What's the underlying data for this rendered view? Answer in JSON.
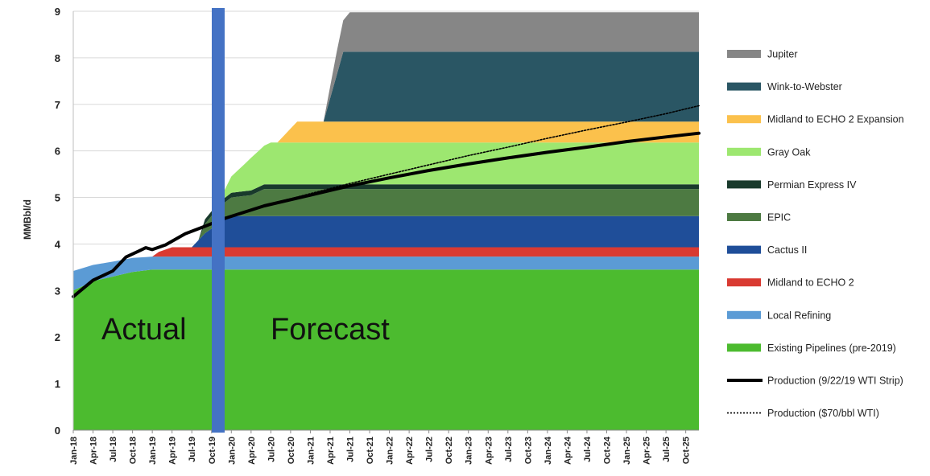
{
  "chart_data": {
    "type": "area",
    "ylabel": "MMBbl/d",
    "ylim": [
      0,
      9
    ],
    "yticks": [
      0,
      1,
      2,
      3,
      4,
      5,
      6,
      7,
      8,
      9
    ],
    "x_start": "Jan-18",
    "x_end": "Dec-25",
    "x_tick_labels": [
      "Jan-18",
      "Apr-18",
      "Jul-18",
      "Oct-18",
      "Jan-19",
      "Apr-19",
      "Jul-19",
      "Oct-19",
      "Jan-20",
      "Apr-20",
      "Jul-20",
      "Oct-20",
      "Jan-21",
      "Apr-21",
      "Jul-21",
      "Oct-21",
      "Jan-22",
      "Apr-22",
      "Jul-22",
      "Oct-22",
      "Jan-23",
      "Apr-23",
      "Jul-23",
      "Oct-23",
      "Jan-24",
      "Apr-24",
      "Jul-24",
      "Oct-24",
      "Jan-25",
      "Apr-25",
      "Jul-25",
      "Oct-25"
    ],
    "annotations": {
      "actual": "Actual",
      "forecast": "Forecast"
    },
    "divider_month": "Dec-19",
    "series": [
      {
        "name": "Existing Pipelines (pre-2019)",
        "color": "#4cbb2f",
        "points": [
          [
            "Jan-18",
            3.0
          ],
          [
            "Apr-18",
            3.2
          ],
          [
            "Jul-18",
            3.3
          ],
          [
            "Oct-18",
            3.4
          ],
          [
            "Jan-19",
            3.45
          ],
          [
            "Dec-25",
            3.45
          ]
        ]
      },
      {
        "name": "Local Refining",
        "color": "#5b9bd5",
        "points": [
          [
            "Jan-18",
            0.42
          ],
          [
            "Apr-18",
            0.35
          ],
          [
            "Jul-18",
            0.32
          ],
          [
            "Oct-18",
            0.3
          ],
          [
            "Jan-19",
            0.28
          ],
          [
            "Dec-25",
            0.28
          ]
        ]
      },
      {
        "name": "Midland to ECHO 2",
        "color": "#d93a32",
        "points": [
          [
            "Jan-18",
            0
          ],
          [
            "Jan-19",
            0
          ],
          [
            "Feb-19",
            0.1
          ],
          [
            "Apr-19",
            0.2
          ],
          [
            "Dec-25",
            0.2
          ]
        ]
      },
      {
        "name": "Cactus II",
        "color": "#1f4e99",
        "points": [
          [
            "Jan-18",
            0
          ],
          [
            "Jul-19",
            0
          ],
          [
            "Sep-19",
            0.3
          ],
          [
            "Nov-19",
            0.5
          ],
          [
            "Jan-20",
            0.67
          ],
          [
            "Dec-25",
            0.67
          ]
        ]
      },
      {
        "name": "EPIC",
        "color": "#4d7a42",
        "points": [
          [
            "Jan-18",
            0
          ],
          [
            "Aug-19",
            0
          ],
          [
            "Sep-19",
            0.2
          ],
          [
            "Nov-19",
            0.35
          ],
          [
            "Jan-20",
            0.4
          ],
          [
            "Apr-20",
            0.45
          ],
          [
            "Jun-20",
            0.58
          ],
          [
            "Dec-25",
            0.58
          ]
        ]
      },
      {
        "name": "Permian Express IV",
        "color": "#193a2c",
        "points": [
          [
            "Jan-18",
            0
          ],
          [
            "Aug-19",
            0
          ],
          [
            "Sep-19",
            0.1
          ],
          [
            "Dec-19",
            0.1
          ],
          [
            "Jan-20",
            0.1
          ],
          [
            "Dec-25",
            0.1
          ]
        ]
      },
      {
        "name": "Gray Oak",
        "color": "#9de770",
        "points": [
          [
            "Jan-18",
            0
          ],
          [
            "Nov-19",
            0
          ],
          [
            "Jan-20",
            0.35
          ],
          [
            "Apr-20",
            0.7
          ],
          [
            "Jul-20",
            0.9
          ],
          [
            "Dec-25",
            0.9
          ]
        ]
      },
      {
        "name": "Midland to ECHO 2 Expansion",
        "color": "#fbc14c",
        "points": [
          [
            "Jan-18",
            0
          ],
          [
            "Aug-20",
            0
          ],
          [
            "Oct-20",
            0.3
          ],
          [
            "Nov-20",
            0.45
          ],
          [
            "Dec-25",
            0.45
          ]
        ]
      },
      {
        "name": "Wink-to-Webster",
        "color": "#2a5664",
        "points": [
          [
            "Jan-18",
            0
          ],
          [
            "Mar-21",
            0
          ],
          [
            "Jun-21",
            1.5
          ],
          [
            "Jul-21",
            1.5
          ],
          [
            "Dec-25",
            1.5
          ]
        ]
      },
      {
        "name": "Jupiter",
        "color": "#868686",
        "points": [
          [
            "Jan-18",
            0
          ],
          [
            "Mar-21",
            0
          ],
          [
            "May-21",
            0.5
          ],
          [
            "Jul-21",
            0.85
          ],
          [
            "Dec-25",
            0.85
          ]
        ]
      }
    ],
    "lines": [
      {
        "name": "Production (9/22/19 WTI Strip)",
        "style": "solid",
        "color": "#000000",
        "points": [
          [
            "Jan-18",
            2.87
          ],
          [
            "Apr-18",
            3.22
          ],
          [
            "Jul-18",
            3.42
          ],
          [
            "Sep-18",
            3.72
          ],
          [
            "Nov-18",
            3.85
          ],
          [
            "Dec-18",
            3.92
          ],
          [
            "Jan-19",
            3.88
          ],
          [
            "Mar-19",
            3.98
          ],
          [
            "Jun-19",
            4.22
          ],
          [
            "Sep-19",
            4.38
          ],
          [
            "Dec-19",
            4.55
          ],
          [
            "Jun-20",
            4.82
          ],
          [
            "Jan-21",
            5.05
          ],
          [
            "Jul-21",
            5.25
          ],
          [
            "Jan-22",
            5.42
          ],
          [
            "Jul-22",
            5.58
          ],
          [
            "Jan-23",
            5.72
          ],
          [
            "Jul-23",
            5.85
          ],
          [
            "Jan-24",
            5.97
          ],
          [
            "Jul-24",
            6.08
          ],
          [
            "Jan-25",
            6.2
          ],
          [
            "Jul-25",
            6.3
          ],
          [
            "Dec-25",
            6.38
          ]
        ]
      },
      {
        "name": "Production ($70/bbl WTI)",
        "style": "dotted",
        "color": "#000000",
        "points": [
          [
            "Dec-19",
            4.55
          ],
          [
            "Jun-20",
            4.83
          ],
          [
            "Jan-21",
            5.08
          ],
          [
            "Jul-21",
            5.3
          ],
          [
            "Jan-22",
            5.5
          ],
          [
            "Jul-22",
            5.7
          ],
          [
            "Jan-23",
            5.9
          ],
          [
            "Jul-23",
            6.08
          ],
          [
            "Jan-24",
            6.27
          ],
          [
            "Jul-24",
            6.45
          ],
          [
            "Jan-25",
            6.62
          ],
          [
            "Jul-25",
            6.8
          ],
          [
            "Dec-25",
            6.97
          ]
        ]
      }
    ],
    "legend": {
      "placement": "right",
      "entries": [
        {
          "label": "Jupiter",
          "color": "#868686",
          "kind": "box"
        },
        {
          "label": "Wink-to-Webster",
          "color": "#2a5664",
          "kind": "box"
        },
        {
          "label": "Midland to ECHO 2 Expansion",
          "color": "#fbc14c",
          "kind": "box"
        },
        {
          "label": "Gray Oak",
          "color": "#9de770",
          "kind": "box"
        },
        {
          "label": "Permian Express IV",
          "color": "#193a2c",
          "kind": "box"
        },
        {
          "label": "EPIC",
          "color": "#4d7a42",
          "kind": "box"
        },
        {
          "label": "Cactus II",
          "color": "#1f4e99",
          "kind": "box"
        },
        {
          "label": "Midland to ECHO 2",
          "color": "#d93a32",
          "kind": "box"
        },
        {
          "label": "Local Refining",
          "color": "#5b9bd5",
          "kind": "box"
        },
        {
          "label": "Existing Pipelines (pre-2019)",
          "color": "#4cbb2f",
          "kind": "box"
        },
        {
          "label": "Production (9/22/19 WTI Strip)",
          "color": "#000000",
          "kind": "solid-line"
        },
        {
          "label": "Production ($70/bbl WTI)",
          "color": "#000000",
          "kind": "dotted-line"
        }
      ]
    },
    "grid": true
  }
}
